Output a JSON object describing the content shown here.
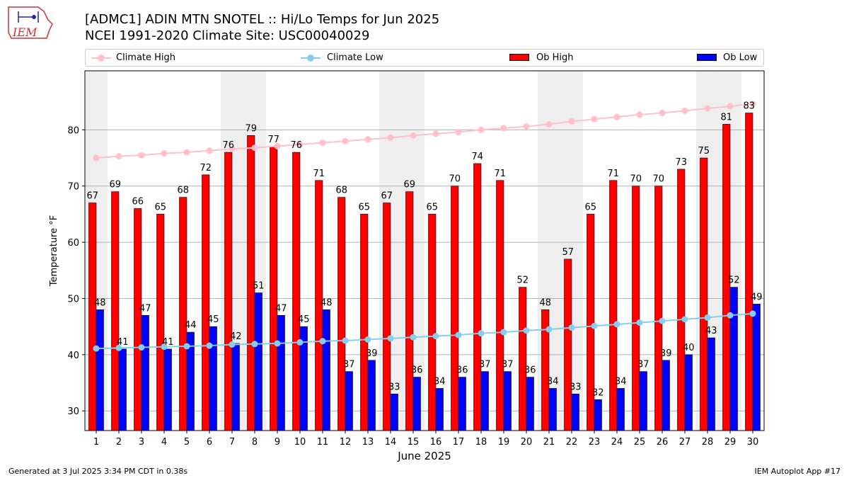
{
  "title": {
    "line1": "[ADMC1] ADIN MTN SNOTEL :: Hi/Lo Temps for Jun 2025",
    "line2": "NCEI 1991-2020 Climate Site: USC00040029"
  },
  "logo": {
    "text": "IEM",
    "icon": "iem-logo-icon"
  },
  "legend": {
    "climate_high": "Climate High",
    "climate_low": "Climate Low",
    "ob_high": "Ob High",
    "ob_low": "Ob Low"
  },
  "colors": {
    "climate_high": "#ffc0cb",
    "climate_low": "#87ceeb",
    "ob_high": "#ff0000",
    "ob_low": "#0000ff",
    "weekend_shade": "#eeeeee",
    "grid": "#b0b0b0"
  },
  "footer": {
    "left": "Generated at 3 Jul 2025 3:34 PM CDT in 0.38s",
    "right": "IEM Autoplot App #17"
  },
  "chart_data": {
    "type": "bar",
    "xlabel": "June 2025",
    "ylabel": "Temperature °F",
    "ylim": [
      26.5,
      90.5
    ],
    "yticks": [
      30,
      40,
      50,
      60,
      70,
      80
    ],
    "grid": "horizontal",
    "legend_position": "top",
    "categories": [
      "1",
      "2",
      "3",
      "4",
      "5",
      "6",
      "7",
      "8",
      "9",
      "10",
      "11",
      "12",
      "13",
      "14",
      "15",
      "16",
      "17",
      "18",
      "19",
      "20",
      "21",
      "22",
      "23",
      "24",
      "25",
      "26",
      "27",
      "28",
      "29",
      "30"
    ],
    "shaded_day_groups": [
      [
        1
      ],
      [
        7,
        8
      ],
      [
        14,
        15
      ],
      [
        21,
        22
      ],
      [
        28,
        29
      ]
    ],
    "series": [
      {
        "name": "Ob High",
        "kind": "bar",
        "values": [
          67,
          69,
          66,
          65,
          68,
          72,
          76,
          79,
          77,
          76,
          71,
          68,
          65,
          67,
          69,
          65,
          70,
          74,
          71,
          52,
          48,
          57,
          65,
          71,
          70,
          70,
          73,
          75,
          81,
          83
        ]
      },
      {
        "name": "Ob Low",
        "kind": "bar",
        "values": [
          48,
          41,
          47,
          41,
          44,
          45,
          42,
          51,
          47,
          45,
          48,
          37,
          39,
          33,
          36,
          34,
          36,
          37,
          37,
          36,
          34,
          33,
          32,
          34,
          37,
          39,
          40,
          43,
          52,
          49
        ]
      },
      {
        "name": "Climate High",
        "kind": "line",
        "values": [
          75.0,
          75.3,
          75.5,
          75.8,
          76.0,
          76.3,
          76.6,
          76.8,
          77.1,
          77.4,
          77.7,
          78.0,
          78.3,
          78.6,
          79.0,
          79.3,
          79.6,
          80.0,
          80.3,
          80.6,
          81.0,
          81.5,
          81.9,
          82.3,
          82.7,
          83.0,
          83.4,
          83.8,
          84.2,
          84.6
        ]
      },
      {
        "name": "Climate Low",
        "kind": "line",
        "values": [
          41.1,
          41.2,
          41.3,
          41.4,
          41.5,
          41.6,
          41.8,
          41.9,
          42.0,
          42.2,
          42.4,
          42.5,
          42.7,
          42.9,
          43.1,
          43.3,
          43.5,
          43.8,
          44.0,
          44.3,
          44.5,
          44.8,
          45.1,
          45.4,
          45.7,
          46.0,
          46.3,
          46.6,
          47.0,
          47.3
        ]
      }
    ]
  }
}
